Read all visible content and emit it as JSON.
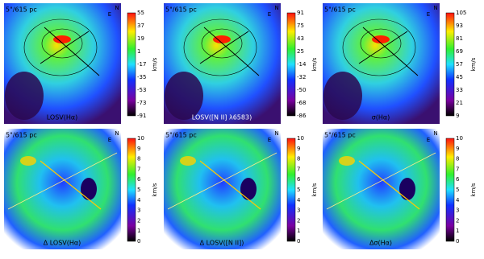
{
  "compass": {
    "north": "N",
    "east": "E"
  },
  "panels": [
    {
      "scale": "5\"/615 pc",
      "caption": "LOSV(Hα)",
      "unit": "km/s",
      "ticks": [
        "55",
        "37",
        "19",
        "1",
        "-17",
        "-35",
        "-53",
        "-73",
        "-91"
      ]
    },
    {
      "scale": "5\"/615 pc",
      "caption": "LOSV([N II] λ6583)",
      "unit": "km/s",
      "ticks": [
        "91",
        "75",
        "43",
        "25",
        "-14",
        "-32",
        "-50",
        "-68",
        "-86"
      ]
    },
    {
      "scale": "5\"/615 pc",
      "caption": "σ(Hα)",
      "unit": "km/s",
      "ticks": [
        "105",
        "93",
        "81",
        "69",
        "57",
        "45",
        "33",
        "21",
        "9"
      ]
    },
    {
      "scale": "5\"/615 pc",
      "caption": "Δ LOSV(Hα)",
      "unit": "km/s",
      "ticks": [
        "10",
        "9",
        "8",
        "7",
        "6",
        "5",
        "4",
        "3",
        "2",
        "1",
        "0"
      ]
    },
    {
      "scale": "5\"/615 pc",
      "caption": "Δ LOSV([N II])",
      "unit": "km/s",
      "ticks": [
        "10",
        "9",
        "8",
        "7",
        "6",
        "5",
        "4",
        "3",
        "2",
        "1",
        "0"
      ]
    },
    {
      "scale": "5\"/615 pc",
      "caption": "Δσ(Hα)",
      "unit": "km/s",
      "ticks": [
        "10",
        "9",
        "8",
        "7",
        "6",
        "5",
        "4",
        "3",
        "2",
        "1",
        "0"
      ]
    }
  ]
}
